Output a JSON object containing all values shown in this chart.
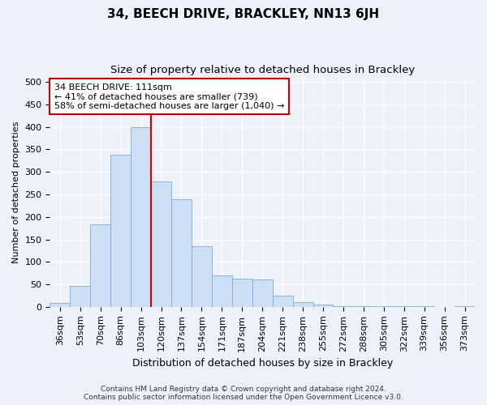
{
  "title": "34, BEECH DRIVE, BRACKLEY, NN13 6JH",
  "subtitle": "Size of property relative to detached houses in Brackley",
  "xlabel": "Distribution of detached houses by size in Brackley",
  "ylabel": "Number of detached properties",
  "footer_line1": "Contains HM Land Registry data © Crown copyright and database right 2024.",
  "footer_line2": "Contains public sector information licensed under the Open Government Licence v3.0.",
  "categories": [
    "36sqm",
    "53sqm",
    "70sqm",
    "86sqm",
    "103sqm",
    "120sqm",
    "137sqm",
    "154sqm",
    "171sqm",
    "187sqm",
    "204sqm",
    "221sqm",
    "238sqm",
    "255sqm",
    "272sqm",
    "288sqm",
    "305sqm",
    "322sqm",
    "339sqm",
    "356sqm",
    "373sqm"
  ],
  "values": [
    8,
    46,
    183,
    338,
    400,
    278,
    240,
    135,
    70,
    62,
    60,
    25,
    10,
    5,
    2,
    1,
    1,
    1,
    1,
    0,
    2
  ],
  "bar_color": "#ccdff5",
  "bar_edge_color": "#7aafd4",
  "vline_color": "#cc0000",
  "annotation_text": "34 BEECH DRIVE: 111sqm\n← 41% of detached houses are smaller (739)\n58% of semi-detached houses are larger (1,040) →",
  "annotation_box_color": "#ffffff",
  "annotation_box_edge": "#cc0000",
  "ylim": [
    0,
    510
  ],
  "yticks": [
    0,
    50,
    100,
    150,
    200,
    250,
    300,
    350,
    400,
    450,
    500
  ],
  "background_color": "#eef2f8",
  "grid_color": "#ffffff",
  "title_fontsize": 11,
  "subtitle_fontsize": 9.5,
  "xlabel_fontsize": 9,
  "ylabel_fontsize": 8,
  "tick_fontsize": 8,
  "annotation_fontsize": 8,
  "footer_fontsize": 6.5
}
